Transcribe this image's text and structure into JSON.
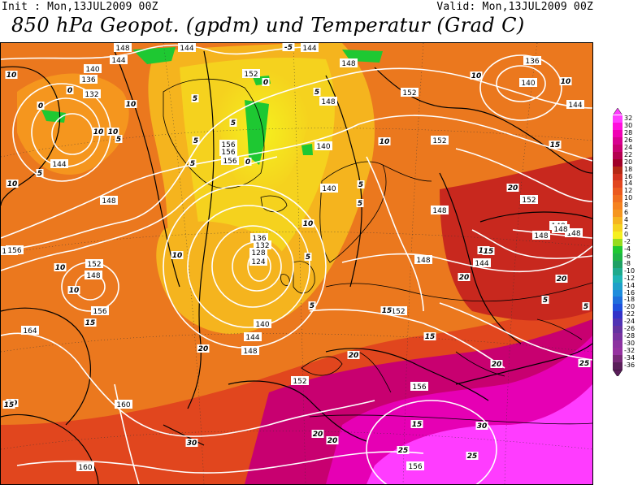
{
  "header": {
    "init": "Init : Mon,13JUL2009 00Z",
    "valid": "Valid: Mon,13JUL2009 00Z",
    "title": "850 hPa Geopot. (gpdm) und Temperatur (Grad C)"
  },
  "legend": {
    "labels": [
      "32",
      "30",
      "28",
      "26",
      "24",
      "22",
      "20",
      "18",
      "16",
      "14",
      "12",
      "10",
      "8",
      "6",
      "4",
      "2",
      "0",
      "-2",
      "-4",
      "-6",
      "-8",
      "-10",
      "-12",
      "-14",
      "-16",
      "-18",
      "-20",
      "-22",
      "-24",
      "-26",
      "-28",
      "-30",
      "-32",
      "-34",
      "-36"
    ],
    "colors": [
      "#ff3cff",
      "#ff0fdc",
      "#f000b4",
      "#d80090",
      "#c80070",
      "#b40050",
      "#a00028",
      "#b42814",
      "#d2321e",
      "#e1461e",
      "#eb5a1e",
      "#f06e1e",
      "#f5821e",
      "#f5961e",
      "#f5b41e",
      "#f5d21e",
      "#f5f01e",
      "#96dc1e",
      "#1ec832",
      "#1eb446",
      "#1ea064",
      "#1eaa8c",
      "#1eb4b4",
      "#1ea0c8",
      "#1e8cdc",
      "#1e6edc",
      "#1e50dc",
      "#3232c8",
      "#5032b4",
      "#6432a0",
      "#7832a0",
      "#8c32a0",
      "#9632a0",
      "#782878",
      "#5a1e5a"
    ],
    "top_arrow_color": "#ff3cff",
    "bottom_arrow_color": "#5a1e5a"
  },
  "map": {
    "geopotential_labels": [
      {
        "text": "144"
      },
      {
        "text": "140"
      },
      {
        "text": "136"
      },
      {
        "text": "132"
      },
      {
        "text": "144"
      },
      {
        "text": "144"
      },
      {
        "text": "148"
      },
      {
        "text": "152"
      },
      {
        "text": "148"
      },
      {
        "text": "152"
      },
      {
        "text": "136"
      },
      {
        "text": "140"
      },
      {
        "text": "144"
      },
      {
        "text": "152"
      },
      {
        "text": "156"
      },
      {
        "text": "156"
      },
      {
        "text": "156"
      },
      {
        "text": "140"
      },
      {
        "text": "144"
      },
      {
        "text": "148"
      },
      {
        "text": "152"
      },
      {
        "text": "140"
      },
      {
        "text": "148"
      },
      {
        "text": "148"
      },
      {
        "text": "148"
      },
      {
        "text": "148"
      },
      {
        "text": "148"
      },
      {
        "text": "152"
      },
      {
        "text": "156"
      },
      {
        "text": "152"
      },
      {
        "text": "148"
      },
      {
        "text": "156"
      },
      {
        "text": "164"
      },
      {
        "text": "136"
      },
      {
        "text": "132"
      },
      {
        "text": "128"
      },
      {
        "text": "124"
      },
      {
        "text": "140"
      },
      {
        "text": "144"
      },
      {
        "text": "148"
      },
      {
        "text": "148"
      },
      {
        "text": "144"
      },
      {
        "text": "152"
      },
      {
        "text": "152"
      },
      {
        "text": "156"
      },
      {
        "text": "160"
      },
      {
        "text": "160"
      },
      {
        "text": "156"
      },
      {
        "text": "148"
      }
    ],
    "temperature_labels": [
      {
        "text": "10"
      },
      {
        "text": "0"
      },
      {
        "text": "0"
      },
      {
        "text": "5"
      },
      {
        "text": "10"
      },
      {
        "text": "10"
      },
      {
        "text": "5"
      },
      {
        "text": "5"
      },
      {
        "text": "5"
      },
      {
        "text": "5"
      },
      {
        "text": "0"
      },
      {
        "text": "0"
      },
      {
        "text": "-5"
      },
      {
        "text": "10"
      },
      {
        "text": "5"
      },
      {
        "text": "10"
      },
      {
        "text": "10"
      },
      {
        "text": "10"
      },
      {
        "text": "15"
      },
      {
        "text": "15"
      },
      {
        "text": "20"
      },
      {
        "text": "10"
      },
      {
        "text": "5"
      },
      {
        "text": "5"
      },
      {
        "text": "10"
      },
      {
        "text": "5"
      },
      {
        "text": "10"
      },
      {
        "text": "10"
      },
      {
        "text": "15"
      },
      {
        "text": "15"
      },
      {
        "text": "20"
      },
      {
        "text": "20"
      },
      {
        "text": "5"
      },
      {
        "text": "5"
      },
      {
        "text": "15"
      },
      {
        "text": "15"
      },
      {
        "text": "20"
      },
      {
        "text": "20"
      },
      {
        "text": "20"
      },
      {
        "text": "15"
      },
      {
        "text": "25"
      },
      {
        "text": "30"
      },
      {
        "text": "25"
      },
      {
        "text": "30"
      },
      {
        "text": "20"
      },
      {
        "text": "20"
      },
      {
        "text": "25"
      },
      {
        "text": "15"
      },
      {
        "text": "20"
      },
      {
        "text": "5"
      },
      {
        "text": "10"
      },
      {
        "text": "5"
      }
    ]
  }
}
